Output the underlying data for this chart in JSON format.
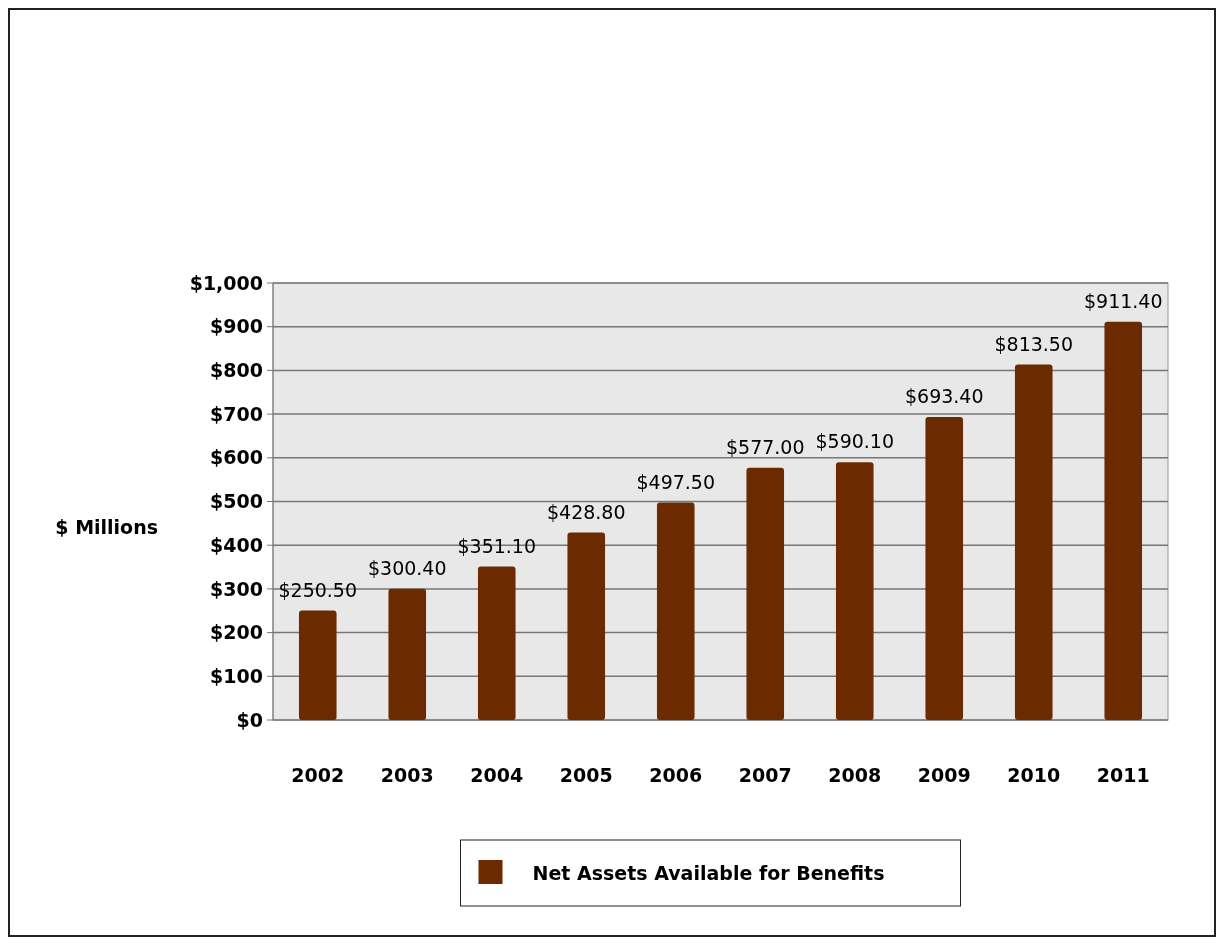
{
  "chart_data": {
    "type": "bar",
    "ylabel": "$ Millions",
    "categories": [
      "2002",
      "2003",
      "2004",
      "2005",
      "2006",
      "2007",
      "2008",
      "2009",
      "2010",
      "2011"
    ],
    "series": [
      {
        "name": "Net Assets Available for Benefits",
        "color": "#6b2a00",
        "values": [
          250.5,
          300.4,
          351.1,
          428.8,
          497.5,
          577.0,
          590.1,
          693.4,
          813.5,
          911.4
        ],
        "value_labels": [
          "$250.50",
          "$300.40",
          "$351.10",
          "$428.80",
          "$497.50",
          "$577.00",
          "$590.10",
          "$693.40",
          "$813.50",
          "$911.40"
        ]
      }
    ],
    "ylim": [
      0,
      1000
    ],
    "yticks": [
      {
        "value": 0,
        "label": "$0"
      },
      {
        "value": 100,
        "label": "$100"
      },
      {
        "value": 200,
        "label": "$200"
      },
      {
        "value": 300,
        "label": "$300"
      },
      {
        "value": 400,
        "label": "$400"
      },
      {
        "value": 500,
        "label": "$500"
      },
      {
        "value": 600,
        "label": "$600"
      },
      {
        "value": 700,
        "label": "$700"
      },
      {
        "value": 800,
        "label": "$800"
      },
      {
        "value": 900,
        "label": "$900"
      },
      {
        "value": 1000,
        "label": "$1,000"
      }
    ],
    "grid": "y",
    "legend": "bottom"
  }
}
